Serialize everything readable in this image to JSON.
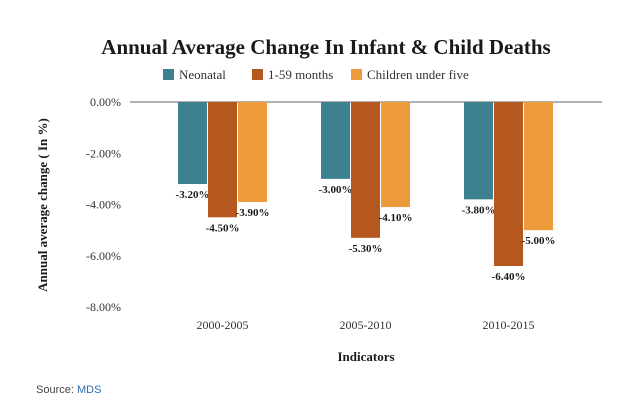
{
  "chart_data": {
    "type": "bar",
    "title": "Annual Average Change In Infant & Child Deaths",
    "xlabel": "Indicators",
    "ylabel": "Annual average change ( In %)",
    "ylim": [
      -8,
      0
    ],
    "yticks": [
      0,
      -2,
      -4,
      -6,
      -8
    ],
    "ytick_labels": [
      "0.00%",
      "-2.00%",
      "-4.00%",
      "-6.00%",
      "-8.00%"
    ],
    "categories": [
      "2000-2005",
      "2005-2010",
      "2010-2015"
    ],
    "series": [
      {
        "name": "Neonatal",
        "values": [
          -3.2,
          -3.0,
          -3.8
        ],
        "labels": [
          "-3.20%",
          "-3.00%",
          "-3.80%"
        ],
        "color": "#3d8190"
      },
      {
        "name": "1-59 months",
        "values": [
          -4.5,
          -5.3,
          -6.4
        ],
        "labels": [
          "-4.50%",
          "-5.30%",
          "-6.40%"
        ],
        "color": "#b5581f"
      },
      {
        "name": "Children under five",
        "values": [
          -3.9,
          -4.1,
          -5.0
        ],
        "labels": [
          "-3.90%",
          "-4.10%",
          "-5.00%"
        ],
        "color": "#ed9a3b"
      }
    ],
    "legend_position": "top",
    "grid": false
  },
  "source": {
    "label": "Source:",
    "link_text": "MDS"
  }
}
